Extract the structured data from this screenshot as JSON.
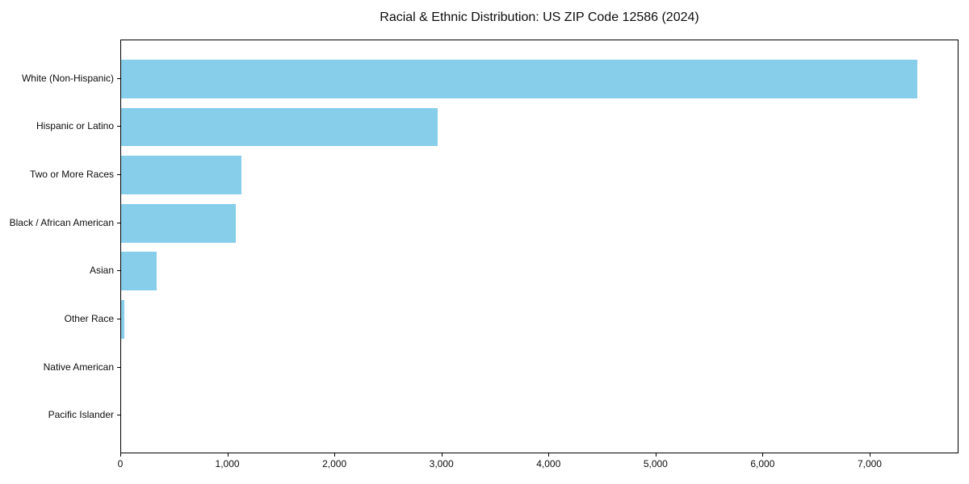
{
  "chart_data": {
    "type": "bar",
    "orientation": "horizontal",
    "title": "Racial & Ethnic Distribution: US ZIP Code 12586 (2024)",
    "categories": [
      "White (Non-Hispanic)",
      "Hispanic or Latino",
      "Two or More Races",
      "Black / African American",
      "Asian",
      "Other Race",
      "Native American",
      "Pacific Islander"
    ],
    "values": [
      7450,
      2965,
      1125,
      1070,
      330,
      30,
      0,
      0
    ],
    "bar_color": "#87CEEB",
    "axis_color": "#000000",
    "background_color": "#ffffff",
    "xlim": [
      0,
      7830
    ],
    "x_ticks": [
      0,
      1000,
      2000,
      3000,
      4000,
      5000,
      6000,
      7000
    ],
    "x_tick_labels": [
      "0",
      "1,000",
      "2,000",
      "3,000",
      "4,000",
      "5,000",
      "6,000",
      "7,000"
    ],
    "xlabel": "",
    "ylabel": "",
    "grid": false,
    "legend": "none"
  }
}
